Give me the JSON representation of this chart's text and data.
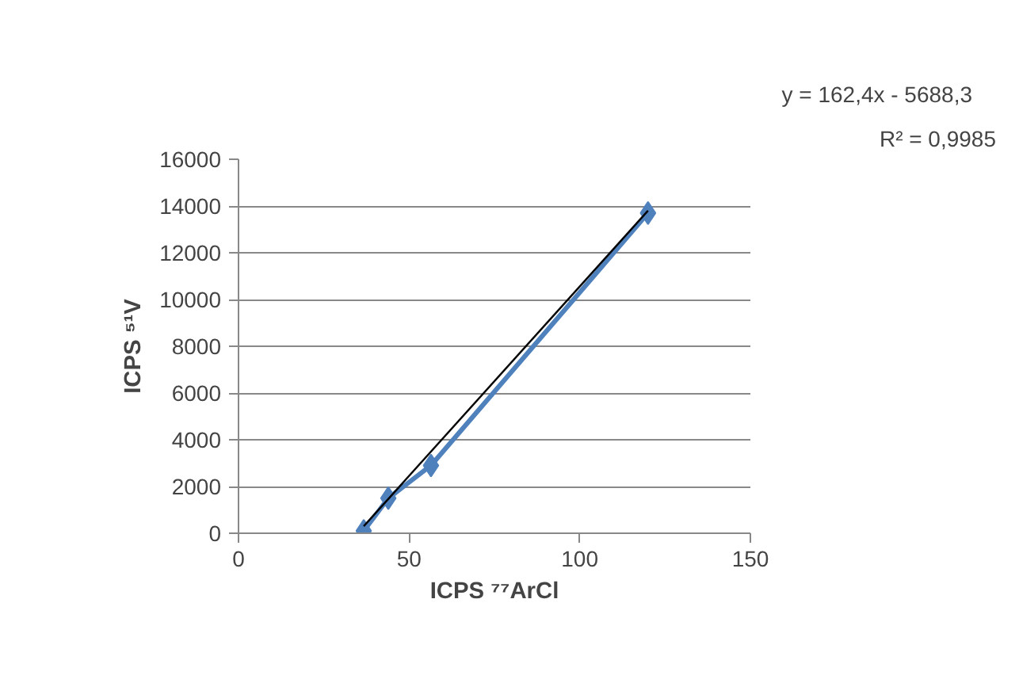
{
  "chart_data": {
    "type": "line",
    "xlabel": "ICPS ⁷⁷ArCl",
    "ylabel": "ICPS ⁵¹V",
    "xlim": [
      0,
      150
    ],
    "xticks": [
      0,
      50,
      100,
      150
    ],
    "ylim": [
      0,
      16000
    ],
    "yticks": [
      0,
      2000,
      4000,
      6000,
      8000,
      10000,
      12000,
      14000,
      16000
    ],
    "grid": "y",
    "marker": "diamond",
    "series": [
      {
        "color": "#4f81bd",
        "x": [
          36.7,
          43.9,
          56.4,
          120
        ],
        "values": [
          100,
          1500,
          2900,
          13700
        ]
      },
      {
        "type": "line",
        "color": "#000000",
        "x": [
          36.7,
          120
        ],
        "values": [
          300,
          13800
        ],
        "marker": "none"
      }
    ],
    "annotations": [
      "y = 162,4x - 5688,3",
      "R² = 0,9985"
    ]
  }
}
